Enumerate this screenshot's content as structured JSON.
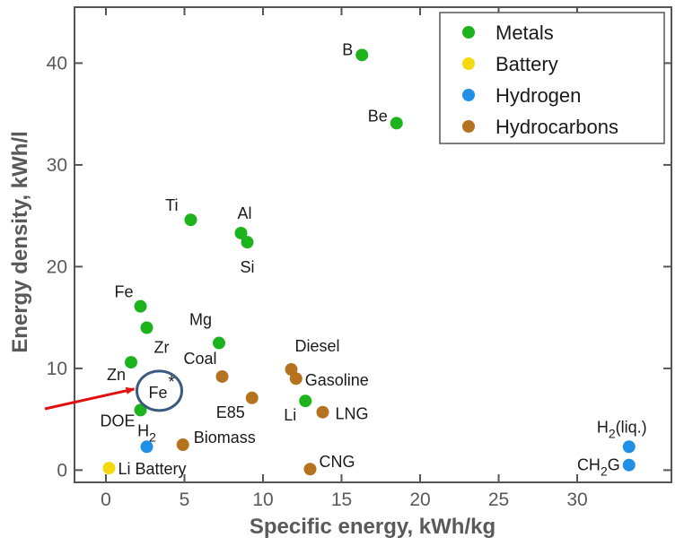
{
  "chart_data": {
    "type": "scatter",
    "xlabel": "Specific energy, kWh/kg",
    "ylabel": "Energy density, kWh/l",
    "xlim": [
      -2,
      36
    ],
    "ylim": [
      -1.2,
      45.5
    ],
    "xticks": [
      "0",
      "5",
      "10",
      "15",
      "20",
      "25",
      "30"
    ],
    "yticks": [
      "0",
      "10",
      "20",
      "30",
      "40"
    ],
    "grid": false,
    "legend_position": "top-right",
    "series": [
      {
        "name": "Metals",
        "color": "#1db31d",
        "points": [
          {
            "label": "B",
            "x": 16.3,
            "y": 40.8
          },
          {
            "label": "Be",
            "x": 18.5,
            "y": 34.1
          },
          {
            "label": "Ti",
            "x": 5.4,
            "y": 24.6
          },
          {
            "label": "Al",
            "x": 8.6,
            "y": 23.3
          },
          {
            "label": "Si",
            "x": 9.0,
            "y": 22.4
          },
          {
            "label": "Fe",
            "x": 2.2,
            "y": 16.1
          },
          {
            "label": "Mg",
            "x": 7.2,
            "y": 12.5
          },
          {
            "label": "Zr",
            "x": 2.6,
            "y": 14.0
          },
          {
            "label": "Zn",
            "x": 1.6,
            "y": 10.6
          },
          {
            "label": "DOE",
            "x": 2.2,
            "y": 5.9
          },
          {
            "label": "Li",
            "x": 12.7,
            "y": 6.8
          }
        ]
      },
      {
        "name": "Battery",
        "color": "#f5d90f",
        "points": [
          {
            "label": "Li Battery",
            "x": 0.2,
            "y": 0.2
          }
        ]
      },
      {
        "name": "Hydrogen",
        "color": "#1f8fe8",
        "points": [
          {
            "label": "H2",
            "x": 2.6,
            "y": 2.3
          },
          {
            "label": "H2(liq.)",
            "x": 33.3,
            "y": 2.3
          },
          {
            "label": "CH2G",
            "x": 33.3,
            "y": 0.5
          }
        ]
      },
      {
        "name": "Hydrocarbons",
        "color": "#b5731f",
        "points": [
          {
            "label": "Coal",
            "x": 7.4,
            "y": 9.2
          },
          {
            "label": "Diesel",
            "x": 11.8,
            "y": 9.9
          },
          {
            "label": "Gasoline",
            "x": 12.1,
            "y": 9.0
          },
          {
            "label": "E85",
            "x": 9.3,
            "y": 7.1
          },
          {
            "label": "LNG",
            "x": 13.8,
            "y": 5.7
          },
          {
            "label": "Biomass",
            "x": 4.9,
            "y": 2.5
          },
          {
            "label": "CNG",
            "x": 13.0,
            "y": 0.1
          }
        ]
      }
    ],
    "annotation": {
      "label": "Fe",
      "superscript": "*",
      "x": 3.4,
      "y": 7.8,
      "style": "circle-with-red-arrow",
      "circle_color": "#3a5a80",
      "arrow_color": "#e01010"
    }
  }
}
